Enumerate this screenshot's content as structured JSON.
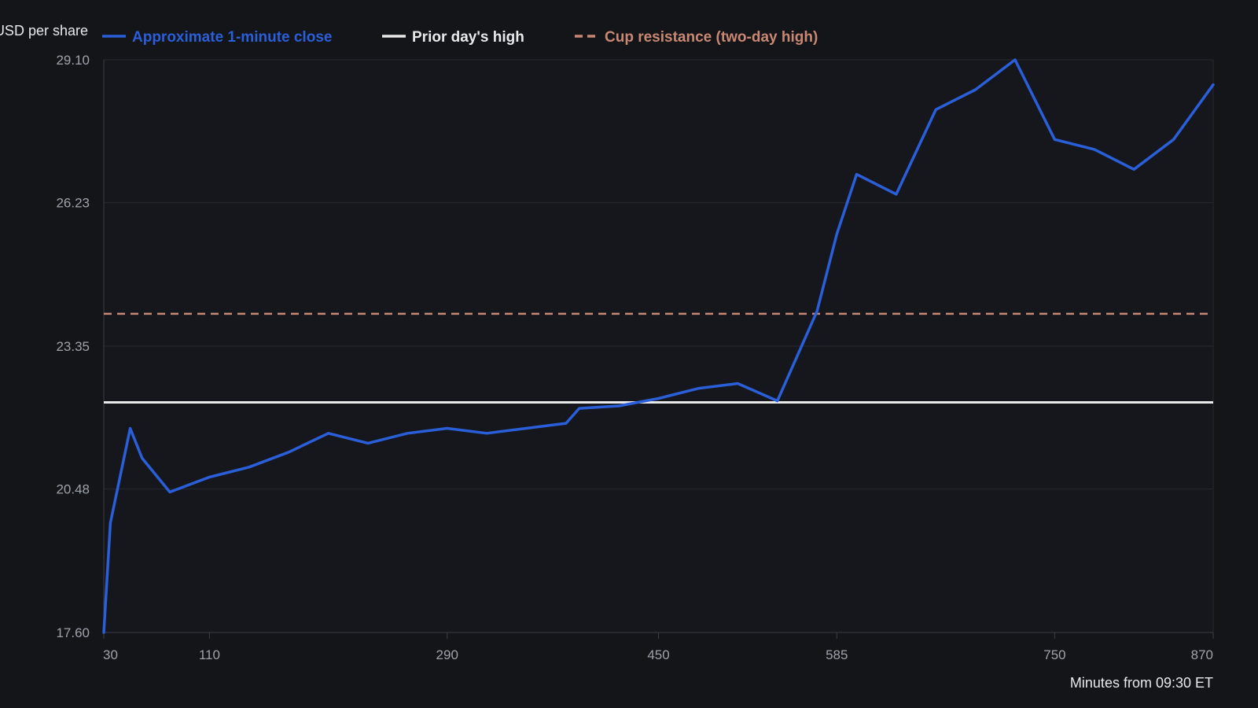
{
  "chart_data": {
    "type": "line",
    "title": "",
    "xlabel": "Minutes from 09:30 ET",
    "ylabel": "USD per share",
    "xlim": [
      30,
      870
    ],
    "ylim": [
      17.6,
      29.1
    ],
    "x_ticks": [
      30,
      110,
      290,
      450,
      585,
      750,
      870
    ],
    "y_ticks": [
      "17.60",
      "20.48",
      "23.35",
      "26.23",
      "29.10"
    ],
    "grid": true,
    "legend": "top",
    "series": [
      {
        "name": "Approximate 1-minute close",
        "kind": "line",
        "color": "#2b5fd9",
        "x": [
          30,
          35,
          50,
          59,
          80,
          110,
          140,
          170,
          200,
          230,
          260,
          290,
          320,
          380,
          390,
          420,
          450,
          480,
          510,
          540,
          570,
          585,
          600,
          630,
          660,
          690,
          720,
          750,
          780,
          810,
          840,
          870
        ],
        "y": [
          17.6,
          19.8,
          21.7,
          21.1,
          20.42,
          20.72,
          20.92,
          21.22,
          21.6,
          21.4,
          21.6,
          21.7,
          21.6,
          21.8,
          22.1,
          22.15,
          22.3,
          22.5,
          22.6,
          22.25,
          24.05,
          25.6,
          26.8,
          26.4,
          28.1,
          28.5,
          29.1,
          27.5,
          27.3,
          26.9,
          27.5,
          28.6
        ]
      },
      {
        "name": "Prior day's high",
        "kind": "hline",
        "color": "#e9e9e9",
        "y": 22.22
      },
      {
        "name": "Cup resistance (two-day high)",
        "kind": "hline-dashed",
        "color": "#c98873",
        "y": 24.0
      }
    ]
  }
}
